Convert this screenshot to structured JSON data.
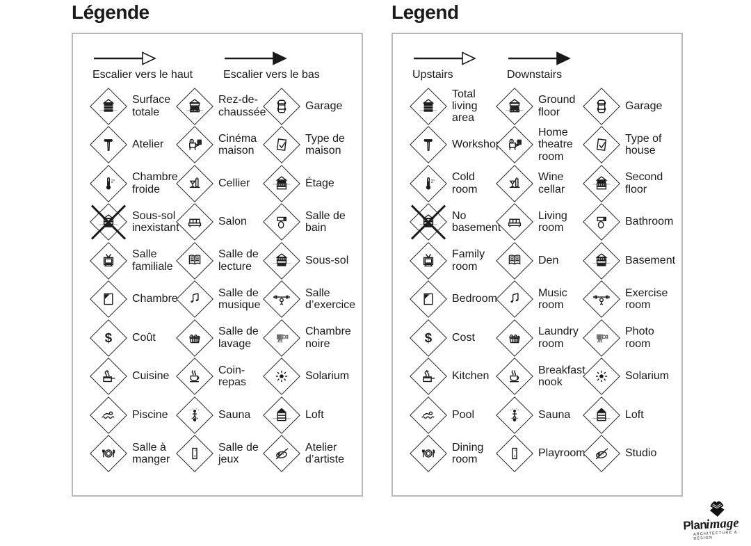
{
  "colors": {
    "ink": "#1a1a1a",
    "panel_border": "#b9b9b9",
    "background": "#ffffff"
  },
  "panels": [
    {
      "id": "french",
      "title": "Légende",
      "arrows": [
        {
          "label": "Escalier vers le haut",
          "head": "open"
        },
        {
          "label": "Escalier vers le bas",
          "head": "filled"
        }
      ],
      "items": [
        {
          "icon": "total-area",
          "label": "Surface totale"
        },
        {
          "icon": "ground-floor",
          "label": "Rez-de-chaussée"
        },
        {
          "icon": "garage",
          "label": "Garage"
        },
        {
          "icon": "workshop",
          "label": "Atelier"
        },
        {
          "icon": "home-theatre",
          "label": "Cinéma maison"
        },
        {
          "icon": "house-type",
          "label": "Type de maison"
        },
        {
          "icon": "cold-room",
          "label": "Chambre froide"
        },
        {
          "icon": "wine-cellar",
          "label": "Cellier"
        },
        {
          "icon": "second-floor",
          "label": "Étage"
        },
        {
          "icon": "no-basement",
          "label": "Sous-sol inexistant"
        },
        {
          "icon": "living-room",
          "label": "Salon"
        },
        {
          "icon": "bathroom",
          "label": "Salle de bain"
        },
        {
          "icon": "family-room",
          "label": "Salle familiale"
        },
        {
          "icon": "den",
          "label": "Salle de lecture"
        },
        {
          "icon": "basement",
          "label": "Sous-sol"
        },
        {
          "icon": "bedroom",
          "label": "Chambre"
        },
        {
          "icon": "music-room",
          "label": "Salle de musique"
        },
        {
          "icon": "exercise-room",
          "label": "Salle d’exercice"
        },
        {
          "icon": "cost",
          "label": "Coût"
        },
        {
          "icon": "laundry-room",
          "label": "Salle de lavage"
        },
        {
          "icon": "photo-room",
          "label": "Chambre noire"
        },
        {
          "icon": "kitchen",
          "label": "Cuisine"
        },
        {
          "icon": "breakfast-nook",
          "label": "Coin-repas"
        },
        {
          "icon": "solarium",
          "label": "Solarium"
        },
        {
          "icon": "pool",
          "label": "Piscine"
        },
        {
          "icon": "sauna",
          "label": "Sauna"
        },
        {
          "icon": "loft",
          "label": "Loft"
        },
        {
          "icon": "dining-room",
          "label": "Salle à manger"
        },
        {
          "icon": "playroom",
          "label": "Salle de jeux"
        },
        {
          "icon": "studio",
          "label": "Atelier d’artiste"
        }
      ]
    },
    {
      "id": "english",
      "title": "Legend",
      "arrows": [
        {
          "label": "Upstairs",
          "head": "open"
        },
        {
          "label": "Downstairs",
          "head": "filled"
        }
      ],
      "items": [
        {
          "icon": "total-area",
          "label": "Total living area"
        },
        {
          "icon": "ground-floor",
          "label": "Ground floor"
        },
        {
          "icon": "garage",
          "label": "Garage"
        },
        {
          "icon": "workshop",
          "label": "Workshop"
        },
        {
          "icon": "home-theatre",
          "label": "Home theatre room"
        },
        {
          "icon": "house-type",
          "label": "Type of house"
        },
        {
          "icon": "cold-room",
          "label": "Cold room"
        },
        {
          "icon": "wine-cellar",
          "label": "Wine cellar"
        },
        {
          "icon": "second-floor",
          "label": "Second floor"
        },
        {
          "icon": "no-basement",
          "label": "No basement"
        },
        {
          "icon": "living-room",
          "label": "Living room"
        },
        {
          "icon": "bathroom",
          "label": "Bathroom"
        },
        {
          "icon": "family-room",
          "label": "Family room"
        },
        {
          "icon": "den",
          "label": "Den"
        },
        {
          "icon": "basement",
          "label": "Basement"
        },
        {
          "icon": "bedroom",
          "label": "Bedroom"
        },
        {
          "icon": "music-room",
          "label": "Music room"
        },
        {
          "icon": "exercise-room",
          "label": "Exercise room"
        },
        {
          "icon": "cost",
          "label": "Cost"
        },
        {
          "icon": "laundry-room",
          "label": "Laundry room"
        },
        {
          "icon": "photo-room",
          "label": "Photo room"
        },
        {
          "icon": "kitchen",
          "label": "Kitchen"
        },
        {
          "icon": "breakfast-nook",
          "label": "Breakfast nook"
        },
        {
          "icon": "solarium",
          "label": "Solarium"
        },
        {
          "icon": "pool",
          "label": "Pool"
        },
        {
          "icon": "sauna",
          "label": "Sauna"
        },
        {
          "icon": "loft",
          "label": "Loft"
        },
        {
          "icon": "dining-room",
          "label": "Dining room"
        },
        {
          "icon": "playroom",
          "label": "Playroom"
        },
        {
          "icon": "studio",
          "label": "Studio"
        }
      ]
    }
  ],
  "logo": {
    "brand_bold": "Plan",
    "brand_script": "image",
    "tagline": "ARCHITECTURE & DESIGN"
  }
}
